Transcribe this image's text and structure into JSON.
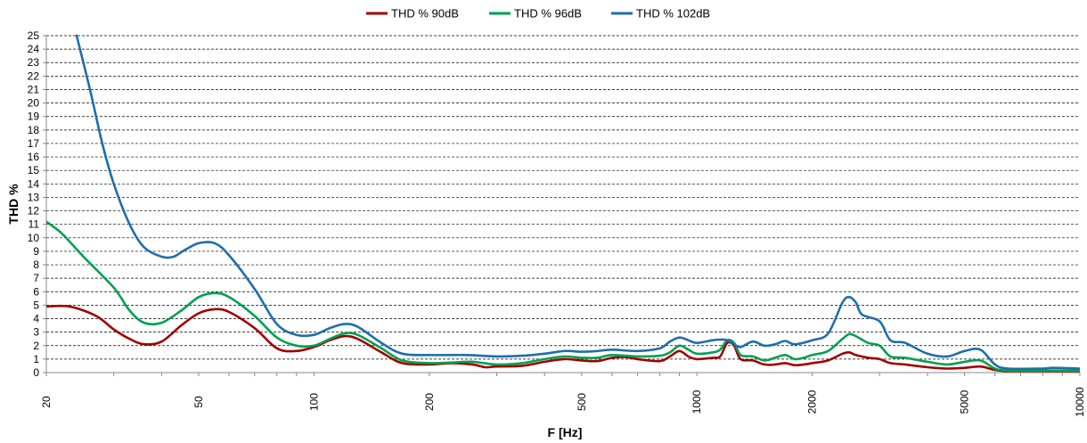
{
  "chart_data": {
    "type": "line",
    "title": "",
    "xlabel": "F [Hz]",
    "ylabel": "THD %",
    "xscale": "log",
    "xlim": [
      20,
      10000
    ],
    "ylim": [
      0,
      25
    ],
    "grid": "horizontal dashed",
    "legend_position": "top",
    "x_ticks": [
      {
        "value": 20,
        "label": "20"
      },
      {
        "value": 50,
        "label": "50"
      },
      {
        "value": 100,
        "label": "100"
      },
      {
        "value": 200,
        "label": "200"
      },
      {
        "value": 500,
        "label": "500"
      },
      {
        "value": 1000,
        "label": "1000"
      },
      {
        "value": 2000,
        "label": "2000"
      },
      {
        "value": 5000,
        "label": "5000"
      },
      {
        "value": 10000,
        "label": "10000"
      }
    ],
    "y_ticks": [
      0,
      1,
      2,
      3,
      4,
      5,
      6,
      7,
      8,
      9,
      10,
      11,
      12,
      13,
      14,
      15,
      16,
      17,
      18,
      19,
      20,
      21,
      22,
      23,
      24,
      25
    ],
    "series": [
      {
        "name": "THD % 90dB",
        "color": "#a00000",
        "points": [
          [
            20,
            4.9
          ],
          [
            23,
            4.9
          ],
          [
            27,
            4.2
          ],
          [
            30,
            3.2
          ],
          [
            33,
            2.5
          ],
          [
            36,
            2.1
          ],
          [
            40,
            2.3
          ],
          [
            45,
            3.5
          ],
          [
            50,
            4.4
          ],
          [
            55,
            4.7
          ],
          [
            60,
            4.5
          ],
          [
            70,
            3.3
          ],
          [
            80,
            1.8
          ],
          [
            90,
            1.6
          ],
          [
            100,
            1.9
          ],
          [
            110,
            2.4
          ],
          [
            120,
            2.7
          ],
          [
            130,
            2.5
          ],
          [
            150,
            1.5
          ],
          [
            170,
            0.7
          ],
          [
            200,
            0.6
          ],
          [
            230,
            0.7
          ],
          [
            260,
            0.6
          ],
          [
            280,
            0.4
          ],
          [
            300,
            0.45
          ],
          [
            350,
            0.5
          ],
          [
            400,
            0.8
          ],
          [
            450,
            1.0
          ],
          [
            500,
            0.9
          ],
          [
            550,
            0.85
          ],
          [
            600,
            1.1
          ],
          [
            650,
            1.15
          ],
          [
            700,
            1.0
          ],
          [
            800,
            0.85
          ],
          [
            850,
            1.2
          ],
          [
            900,
            1.6
          ],
          [
            950,
            1.2
          ],
          [
            1000,
            1.0
          ],
          [
            1100,
            1.1
          ],
          [
            1150,
            1.2
          ],
          [
            1200,
            2.2
          ],
          [
            1250,
            2.0
          ],
          [
            1300,
            1.0
          ],
          [
            1400,
            0.9
          ],
          [
            1500,
            0.6
          ],
          [
            1600,
            0.6
          ],
          [
            1700,
            0.7
          ],
          [
            1800,
            0.55
          ],
          [
            1900,
            0.6
          ],
          [
            2000,
            0.7
          ],
          [
            2200,
            0.9
          ],
          [
            2400,
            1.4
          ],
          [
            2500,
            1.5
          ],
          [
            2600,
            1.3
          ],
          [
            2800,
            1.1
          ],
          [
            3000,
            1.0
          ],
          [
            3200,
            0.7
          ],
          [
            3500,
            0.6
          ],
          [
            4000,
            0.4
          ],
          [
            4500,
            0.3
          ],
          [
            5000,
            0.35
          ],
          [
            5500,
            0.45
          ],
          [
            6000,
            0.2
          ],
          [
            6500,
            0.1
          ],
          [
            8000,
            0.1
          ],
          [
            10000,
            0.1
          ]
        ]
      },
      {
        "name": "THD % 96dB",
        "color": "#00a050",
        "points": [
          [
            20,
            11.2
          ],
          [
            22,
            10.3
          ],
          [
            25,
            8.6
          ],
          [
            30,
            6.3
          ],
          [
            33,
            4.6
          ],
          [
            36,
            3.7
          ],
          [
            40,
            3.7
          ],
          [
            45,
            4.6
          ],
          [
            50,
            5.6
          ],
          [
            55,
            5.9
          ],
          [
            60,
            5.6
          ],
          [
            70,
            4.2
          ],
          [
            80,
            2.6
          ],
          [
            90,
            2.0
          ],
          [
            100,
            2.0
          ],
          [
            110,
            2.5
          ],
          [
            120,
            2.9
          ],
          [
            130,
            2.8
          ],
          [
            150,
            1.8
          ],
          [
            170,
            0.9
          ],
          [
            200,
            0.7
          ],
          [
            230,
            0.75
          ],
          [
            260,
            0.8
          ],
          [
            300,
            0.6
          ],
          [
            350,
            0.7
          ],
          [
            400,
            1.0
          ],
          [
            450,
            1.2
          ],
          [
            500,
            1.1
          ],
          [
            550,
            1.1
          ],
          [
            600,
            1.3
          ],
          [
            700,
            1.2
          ],
          [
            800,
            1.25
          ],
          [
            850,
            1.5
          ],
          [
            900,
            2.0
          ],
          [
            950,
            1.7
          ],
          [
            1000,
            1.4
          ],
          [
            1100,
            1.5
          ],
          [
            1150,
            1.7
          ],
          [
            1200,
            2.4
          ],
          [
            1250,
            2.2
          ],
          [
            1300,
            1.3
          ],
          [
            1400,
            1.2
          ],
          [
            1500,
            0.9
          ],
          [
            1600,
            1.1
          ],
          [
            1700,
            1.3
          ],
          [
            1800,
            1.0
          ],
          [
            1900,
            1.1
          ],
          [
            2000,
            1.3
          ],
          [
            2200,
            1.6
          ],
          [
            2400,
            2.5
          ],
          [
            2500,
            2.85
          ],
          [
            2600,
            2.7
          ],
          [
            2800,
            2.2
          ],
          [
            3000,
            2.0
          ],
          [
            3200,
            1.2
          ],
          [
            3500,
            1.1
          ],
          [
            4000,
            0.8
          ],
          [
            4500,
            0.6
          ],
          [
            5000,
            0.8
          ],
          [
            5500,
            0.9
          ],
          [
            6000,
            0.3
          ],
          [
            6500,
            0.15
          ],
          [
            8000,
            0.15
          ],
          [
            10000,
            0.15
          ]
        ]
      },
      {
        "name": "THD % 102dB",
        "color": "#1f6eaa",
        "points": [
          [
            24,
            25
          ],
          [
            26,
            21
          ],
          [
            28,
            17
          ],
          [
            30,
            14
          ],
          [
            33,
            11
          ],
          [
            36,
            9.3
          ],
          [
            40,
            8.6
          ],
          [
            43,
            8.6
          ],
          [
            46,
            9.1
          ],
          [
            50,
            9.6
          ],
          [
            55,
            9.6
          ],
          [
            60,
            8.7
          ],
          [
            70,
            6.2
          ],
          [
            80,
            3.6
          ],
          [
            90,
            2.8
          ],
          [
            100,
            2.8
          ],
          [
            110,
            3.3
          ],
          [
            120,
            3.6
          ],
          [
            130,
            3.4
          ],
          [
            150,
            2.2
          ],
          [
            170,
            1.4
          ],
          [
            200,
            1.3
          ],
          [
            250,
            1.3
          ],
          [
            300,
            1.2
          ],
          [
            350,
            1.25
          ],
          [
            400,
            1.4
          ],
          [
            450,
            1.6
          ],
          [
            500,
            1.55
          ],
          [
            550,
            1.6
          ],
          [
            600,
            1.7
          ],
          [
            700,
            1.6
          ],
          [
            800,
            1.8
          ],
          [
            850,
            2.3
          ],
          [
            900,
            2.6
          ],
          [
            950,
            2.4
          ],
          [
            1000,
            2.2
          ],
          [
            1100,
            2.4
          ],
          [
            1150,
            2.45
          ],
          [
            1200,
            2.4
          ],
          [
            1250,
            2.1
          ],
          [
            1300,
            1.9
          ],
          [
            1400,
            2.3
          ],
          [
            1500,
            2.0
          ],
          [
            1600,
            2.1
          ],
          [
            1700,
            2.35
          ],
          [
            1800,
            2.1
          ],
          [
            2000,
            2.4
          ],
          [
            2200,
            2.9
          ],
          [
            2400,
            5.2
          ],
          [
            2500,
            5.6
          ],
          [
            2600,
            5.2
          ],
          [
            2700,
            4.3
          ],
          [
            3000,
            3.8
          ],
          [
            3200,
            2.4
          ],
          [
            3500,
            2.2
          ],
          [
            4000,
            1.4
          ],
          [
            4500,
            1.2
          ],
          [
            5000,
            1.6
          ],
          [
            5500,
            1.7
          ],
          [
            6000,
            0.6
          ],
          [
            6500,
            0.3
          ],
          [
            8000,
            0.3
          ],
          [
            8500,
            0.35
          ],
          [
            10000,
            0.3
          ]
        ]
      }
    ]
  }
}
